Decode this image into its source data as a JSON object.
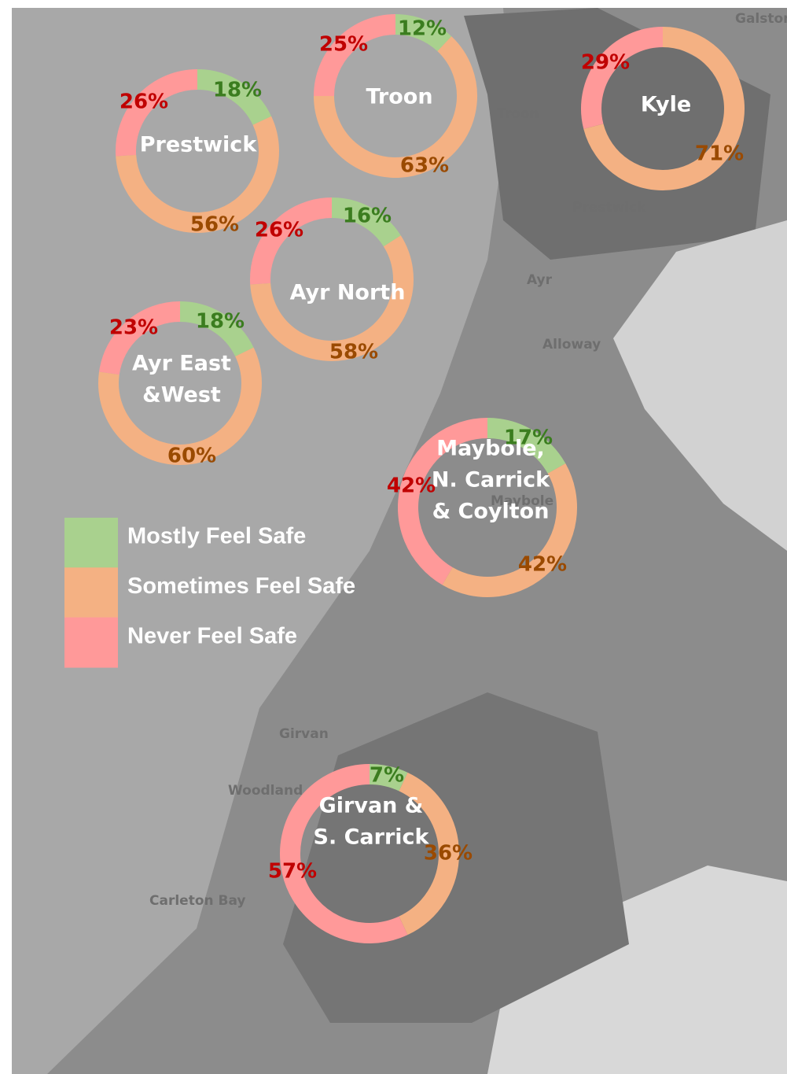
{
  "legend": {
    "items": [
      "Mostly Feel Safe",
      "Sometimes Feel Safe",
      "Never Feel Safe"
    ],
    "colors": [
      "#a9d18e",
      "#f4b183",
      "#ff9999"
    ]
  },
  "donuts": [
    {
      "label": [
        "Troon"
      ],
      "values": [
        12,
        63,
        25
      ],
      "value_labels": [
        "12%",
        "63%",
        "25%"
      ]
    },
    {
      "label": [
        "Prestwick"
      ],
      "values": [
        18,
        56,
        26
      ],
      "value_labels": [
        "18%",
        "56%",
        "26%"
      ]
    },
    {
      "label": [
        "Kyle"
      ],
      "values": [
        null,
        71,
        29
      ],
      "value_labels": [
        null,
        "71%",
        "29%"
      ]
    },
    {
      "label": [
        "Ayr  North"
      ],
      "values": [
        16,
        58,
        26
      ],
      "value_labels": [
        "16%",
        "58%",
        "26%"
      ]
    },
    {
      "label": [
        "Ayr East",
        "&West"
      ],
      "values": [
        18,
        60,
        23
      ],
      "value_labels": [
        "18%",
        "60%",
        "23%"
      ]
    },
    {
      "label": [
        "Maybole,",
        "N. Carrick",
        "& Coylton"
      ],
      "values": [
        17,
        42,
        42
      ],
      "value_labels": [
        "17%",
        "42%",
        "42%"
      ]
    },
    {
      "label": [
        "Girvan &",
        "S. Carrick"
      ],
      "values": [
        7,
        36,
        57
      ],
      "value_labels": [
        "7%",
        "36%",
        "57%"
      ]
    }
  ],
  "places": [
    "Galston",
    "Troon",
    "Prestwick",
    "Ayr",
    "Alloway",
    "Maybole",
    "Girvan",
    "Woodland",
    "Carleton Bay"
  ]
}
